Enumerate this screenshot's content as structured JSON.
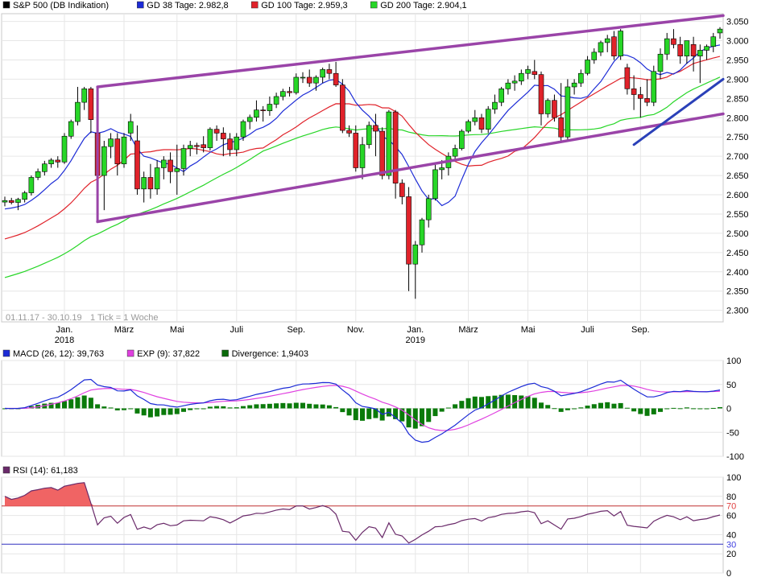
{
  "chart_data": [
    {
      "type": "candlestick",
      "legend": [
        {
          "name": "S&P 500 (DB Indikation)",
          "color": "#000000"
        },
        {
          "name": "GD 38 Tage: 2.982,8",
          "color": "#1c2bd6"
        },
        {
          "name": "GD 100 Tage: 2.959,3",
          "color": "#e0222a"
        },
        {
          "name": "GD 200 Tage: 2.904,1",
          "color": "#27d627"
        }
      ],
      "period_label": "01.11.17 - 30.10.19",
      "tick_label": "1 Tick = 1 Woche",
      "ylim": [
        2270,
        3070
      ],
      "yticks": [
        "2.300",
        "2.350",
        "2.400",
        "2.450",
        "2.500",
        "2.550",
        "2.600",
        "2.650",
        "2.700",
        "2.750",
        "2.800",
        "2.850",
        "2.900",
        "2.950",
        "3.000",
        "3.050"
      ],
      "ytick_values": [
        2300,
        2350,
        2400,
        2450,
        2500,
        2550,
        2600,
        2650,
        2700,
        2750,
        2800,
        2850,
        2900,
        2950,
        3000,
        3050
      ],
      "xticks": [
        {
          "label": "Jan.",
          "year": "2018",
          "week": 9
        },
        {
          "label": "März",
          "year": "",
          "week": 18
        },
        {
          "label": "Mai",
          "year": "",
          "week": 26
        },
        {
          "label": "Juli",
          "year": "",
          "week": 35
        },
        {
          "label": "Sep.",
          "year": "",
          "week": 44
        },
        {
          "label": "Nov.",
          "year": "",
          "week": 53
        },
        {
          "label": "Jan.",
          "year": "2019",
          "week": 62
        },
        {
          "label": "März",
          "year": "",
          "week": 70
        },
        {
          "label": "Mai",
          "year": "",
          "week": 79
        },
        {
          "label": "Juli",
          "year": "",
          "week": 88
        },
        {
          "label": "Sep.",
          "year": "",
          "week": 96
        }
      ],
      "colors": {
        "up": "#27d627",
        "down": "#e0222a",
        "channel": "#9a44a8",
        "trend": "#2a40b8"
      },
      "candles": [
        [
          2581,
          2595,
          2570,
          2585
        ],
        [
          2585,
          2592,
          2575,
          2580
        ],
        [
          2580,
          2592,
          2560,
          2588
        ],
        [
          2588,
          2610,
          2580,
          2605
        ],
        [
          2605,
          2650,
          2598,
          2645
        ],
        [
          2645,
          2668,
          2638,
          2660
        ],
        [
          2660,
          2688,
          2650,
          2680
        ],
        [
          2680,
          2695,
          2670,
          2690
        ],
        [
          2690,
          2700,
          2670,
          2685
        ],
        [
          2685,
          2760,
          2680,
          2752
        ],
        [
          2752,
          2795,
          2745,
          2790
        ],
        [
          2790,
          2880,
          2780,
          2840
        ],
        [
          2840,
          2880,
          2820,
          2875
        ],
        [
          2875,
          2880,
          2760,
          2795
        ],
        [
          2760,
          2765,
          2530,
          2650
        ],
        [
          2650,
          2740,
          2560,
          2725
        ],
        [
          2725,
          2760,
          2695,
          2745
        ],
        [
          2745,
          2760,
          2650,
          2680
        ],
        [
          2680,
          2760,
          2670,
          2750
        ],
        [
          2760,
          2810,
          2740,
          2790
        ],
        [
          2740,
          2780,
          2600,
          2615
        ],
        [
          2615,
          2660,
          2580,
          2645
        ],
        [
          2645,
          2680,
          2590,
          2615
        ],
        [
          2615,
          2690,
          2600,
          2670
        ],
        [
          2670,
          2700,
          2640,
          2690
        ],
        [
          2690,
          2710,
          2630,
          2660
        ],
        [
          2660,
          2730,
          2600,
          2668
        ],
        [
          2668,
          2730,
          2650,
          2720
        ],
        [
          2720,
          2740,
          2700,
          2728
        ],
        [
          2728,
          2735,
          2705,
          2725
        ],
        [
          2730,
          2752,
          2710,
          2722
        ],
        [
          2722,
          2775,
          2715,
          2770
        ],
        [
          2770,
          2780,
          2740,
          2760
        ],
        [
          2760,
          2775,
          2700,
          2745
        ],
        [
          2745,
          2760,
          2700,
          2717
        ],
        [
          2717,
          2760,
          2700,
          2750
        ],
        [
          2750,
          2795,
          2740,
          2790
        ],
        [
          2790,
          2808,
          2770,
          2801
        ],
        [
          2801,
          2845,
          2790,
          2820
        ],
        [
          2820,
          2830,
          2790,
          2818
        ],
        [
          2818,
          2855,
          2805,
          2835
        ],
        [
          2835,
          2865,
          2825,
          2855
        ],
        [
          2855,
          2875,
          2845,
          2868
        ],
        [
          2868,
          2880,
          2855,
          2865
        ],
        [
          2865,
          2915,
          2860,
          2905
        ],
        [
          2905,
          2918,
          2890,
          2905
        ],
        [
          2905,
          2925,
          2880,
          2890
        ],
        [
          2890,
          2910,
          2870,
          2905
        ],
        [
          2905,
          2930,
          2890,
          2925
        ],
        [
          2925,
          2940,
          2900,
          2915
        ],
        [
          2915,
          2945,
          2880,
          2885
        ],
        [
          2885,
          2900,
          2760,
          2767
        ],
        [
          2767,
          2780,
          2750,
          2760
        ],
        [
          2760,
          2780,
          2660,
          2670
        ],
        [
          2670,
          2750,
          2640,
          2730
        ],
        [
          2730,
          2790,
          2720,
          2780
        ],
        [
          2780,
          2810,
          2700,
          2765
        ],
        [
          2765,
          2775,
          2640,
          2650
        ],
        [
          2650,
          2820,
          2640,
          2815
        ],
        [
          2815,
          2820,
          2590,
          2630
        ],
        [
          2630,
          2640,
          2575,
          2595
        ],
        [
          2595,
          2620,
          2350,
          2420
        ],
        [
          2420,
          2480,
          2330,
          2470
        ],
        [
          2470,
          2540,
          2450,
          2535
        ],
        [
          2535,
          2600,
          2515,
          2590
        ],
        [
          2590,
          2680,
          2585,
          2665
        ],
        [
          2665,
          2690,
          2640,
          2670
        ],
        [
          2670,
          2710,
          2650,
          2700
        ],
        [
          2700,
          2730,
          2690,
          2720
        ],
        [
          2720,
          2770,
          2715,
          2765
        ],
        [
          2765,
          2795,
          2760,
          2790
        ],
        [
          2790,
          2820,
          2780,
          2800
        ],
        [
          2800,
          2810,
          2760,
          2770
        ],
        [
          2770,
          2830,
          2760,
          2822
        ],
        [
          2822,
          2860,
          2810,
          2840
        ],
        [
          2840,
          2880,
          2830,
          2875
        ],
        [
          2875,
          2900,
          2860,
          2890
        ],
        [
          2890,
          2910,
          2870,
          2895
        ],
        [
          2895,
          2925,
          2885,
          2915
        ],
        [
          2915,
          2935,
          2900,
          2925
        ],
        [
          2920,
          2950,
          2900,
          2912
        ],
        [
          2912,
          2920,
          2780,
          2810
        ],
        [
          2810,
          2850,
          2800,
          2845
        ],
        [
          2845,
          2860,
          2790,
          2800
        ],
        [
          2800,
          2890,
          2735,
          2750
        ],
        [
          2750,
          2900,
          2740,
          2880
        ],
        [
          2880,
          2900,
          2860,
          2890
        ],
        [
          2890,
          2925,
          2880,
          2915
        ],
        [
          2915,
          2960,
          2910,
          2950
        ],
        [
          2950,
          2980,
          2940,
          2970
        ],
        [
          2970,
          3000,
          2960,
          2995
        ],
        [
          2995,
          3015,
          2970,
          3005
        ],
        [
          3010,
          3025,
          2950,
          2960
        ],
        [
          2960,
          3030,
          2950,
          3025
        ],
        [
          2930,
          2940,
          2860,
          2875
        ],
        [
          2875,
          2910,
          2820,
          2860
        ],
        [
          2860,
          2880,
          2800,
          2850
        ],
        [
          2850,
          2900,
          2830,
          2840
        ],
        [
          2840,
          2935,
          2830,
          2920
        ],
        [
          2920,
          2980,
          2900,
          2965
        ],
        [
          2965,
          3020,
          2950,
          3005
        ],
        [
          3005,
          3030,
          2980,
          2990
        ],
        [
          2990,
          3010,
          2940,
          2960
        ],
        [
          2960,
          3000,
          2940,
          3000
        ],
        [
          2990,
          3010,
          2920,
          2960
        ],
        [
          2960,
          2990,
          2890,
          2975
        ],
        [
          2975,
          2990,
          2950,
          2985
        ],
        [
          2985,
          3020,
          2970,
          3010
        ],
        [
          3020,
          3035,
          3005,
          3030
        ]
      ],
      "channel_upper": [
        [
          14,
          2880
        ],
        [
          123,
          3065
        ]
      ],
      "channel_lower": [
        [
          14,
          2530
        ],
        [
          123,
          2810
        ]
      ],
      "trend_line": [
        [
          95,
          2730
        ],
        [
          123,
          2900
        ]
      ]
    },
    {
      "type": "macd",
      "legend": [
        {
          "name": "MACD (26, 12): 39,763",
          "color": "#1c2bd6"
        },
        {
          "name": "EXP (9): 37,822",
          "color": "#e040e0"
        },
        {
          "name": "Divergence: 1,9403",
          "color": "#0a6a0a"
        }
      ],
      "ylim": [
        -100,
        100
      ],
      "yticks": [
        "100",
        "50",
        "0",
        "-50",
        "-100"
      ],
      "ytick_values": [
        100,
        50,
        0,
        -50,
        -100
      ]
    },
    {
      "type": "rsi",
      "legend": [
        {
          "name": "RSI (14): 61,183",
          "color": "#6a2a6a"
        }
      ],
      "ylim": [
        0,
        100
      ],
      "yticks": [
        "100",
        "80",
        "70",
        "60",
        "40",
        "30",
        "20",
        "0"
      ],
      "ytick_values": [
        100,
        80,
        70,
        60,
        40,
        30,
        20,
        0
      ],
      "overbought": 70,
      "oversold": 30
    }
  ]
}
